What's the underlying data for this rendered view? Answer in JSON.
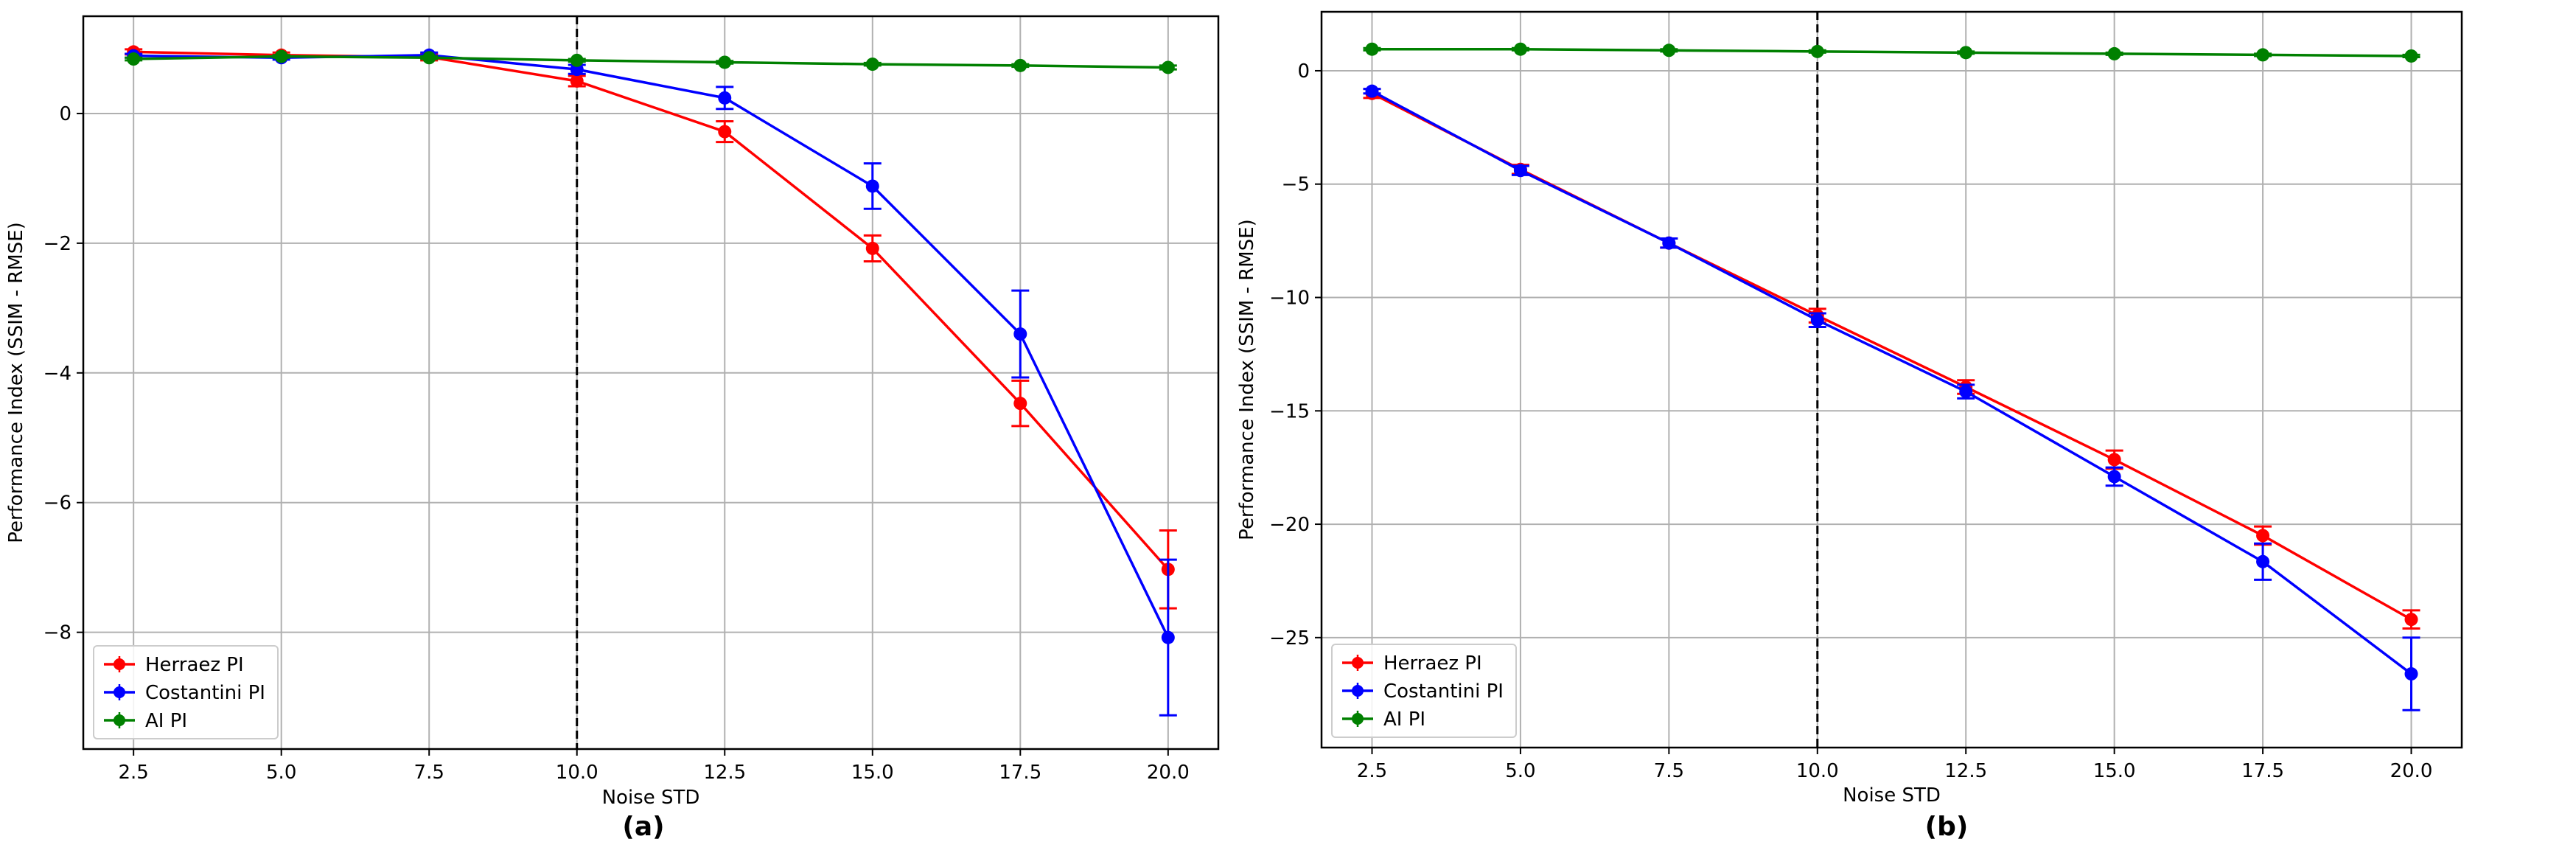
{
  "chart_data": [
    {
      "type": "line",
      "panel_label": "(a)",
      "title": "",
      "xlabel": "Noise STD",
      "ylabel": "Performance Index (SSIM - RMSE)",
      "xlim": [
        1.65,
        20.85
      ],
      "ylim": [
        -9.8,
        1.5
      ],
      "xticks": [
        2.5,
        5.0,
        7.5,
        10.0,
        12.5,
        15.0,
        17.5,
        20.0
      ],
      "xtick_labels": [
        "2.5",
        "5.0",
        "7.5",
        "10.0",
        "12.5",
        "15.0",
        "17.5",
        "20.0"
      ],
      "yticks": [
        0,
        -2,
        -4,
        -6,
        -8
      ],
      "ytick_labels": [
        "0",
        "−2",
        "−4",
        "−6",
        "−8"
      ],
      "grid": true,
      "vline_x": 10.0,
      "legend_position": "lower-left",
      "x": [
        2.5,
        5.0,
        7.5,
        10.0,
        12.5,
        15.0,
        17.5,
        20.0
      ],
      "series": [
        {
          "name": "Herraez PI",
          "color": "#ff0000",
          "values": [
            0.95,
            0.9,
            0.87,
            0.5,
            -0.28,
            -2.08,
            -4.47,
            -7.03
          ],
          "errors": [
            0.04,
            0.04,
            0.05,
            0.08,
            0.16,
            0.2,
            0.35,
            0.6
          ]
        },
        {
          "name": "Costantini PI",
          "color": "#0000ff",
          "values": [
            0.89,
            0.86,
            0.9,
            0.68,
            0.24,
            -1.12,
            -3.4,
            -8.08
          ],
          "errors": [
            0.03,
            0.03,
            0.04,
            0.07,
            0.17,
            0.35,
            0.67,
            1.2
          ]
        },
        {
          "name": "AI PI",
          "color": "#008000",
          "values": [
            0.84,
            0.88,
            0.86,
            0.82,
            0.79,
            0.76,
            0.74,
            0.71
          ],
          "errors": [
            0.02,
            0.02,
            0.02,
            0.02,
            0.02,
            0.02,
            0.02,
            0.03
          ]
        }
      ]
    },
    {
      "type": "line",
      "panel_label": "(b)",
      "title": "",
      "xlabel": "Noise STD",
      "ylabel": "Performance Index (SSIM - RMSE)",
      "xlim": [
        1.65,
        20.85
      ],
      "ylim": [
        -29.85,
        2.6
      ],
      "xticks": [
        2.5,
        5.0,
        7.5,
        10.0,
        12.5,
        15.0,
        17.5,
        20.0
      ],
      "xtick_labels": [
        "2.5",
        "5.0",
        "7.5",
        "10.0",
        "12.5",
        "15.0",
        "17.5",
        "20.0"
      ],
      "yticks": [
        0,
        -5,
        -10,
        -15,
        -20,
        -25
      ],
      "ytick_labels": [
        "0",
        "−5",
        "−10",
        "−15",
        "−20",
        "−25"
      ],
      "grid": true,
      "vline_x": 10.0,
      "legend_position": "lower-left",
      "x": [
        2.5,
        5.0,
        7.5,
        10.0,
        12.5,
        15.0,
        17.5,
        20.0
      ],
      "series": [
        {
          "name": "Herraez PI",
          "color": "#ff0000",
          "values": [
            -1.0,
            -4.35,
            -7.6,
            -10.8,
            -13.95,
            -17.15,
            -20.5,
            -24.2
          ],
          "errors": [
            0.2,
            0.2,
            0.2,
            0.3,
            0.3,
            0.4,
            0.4,
            0.4
          ]
        },
        {
          "name": "Costantini PI",
          "color": "#0000ff",
          "values": [
            -0.9,
            -4.4,
            -7.6,
            -11.0,
            -14.15,
            -17.9,
            -21.65,
            -26.6
          ],
          "errors": [
            0.1,
            0.2,
            0.2,
            0.3,
            0.3,
            0.4,
            0.8,
            1.6
          ]
        },
        {
          "name": "AI PI",
          "color": "#008000",
          "values": [
            0.95,
            0.95,
            0.9,
            0.85,
            0.8,
            0.75,
            0.7,
            0.65
          ],
          "errors": [
            0.05,
            0.05,
            0.05,
            0.05,
            0.05,
            0.05,
            0.05,
            0.05
          ]
        }
      ]
    }
  ]
}
